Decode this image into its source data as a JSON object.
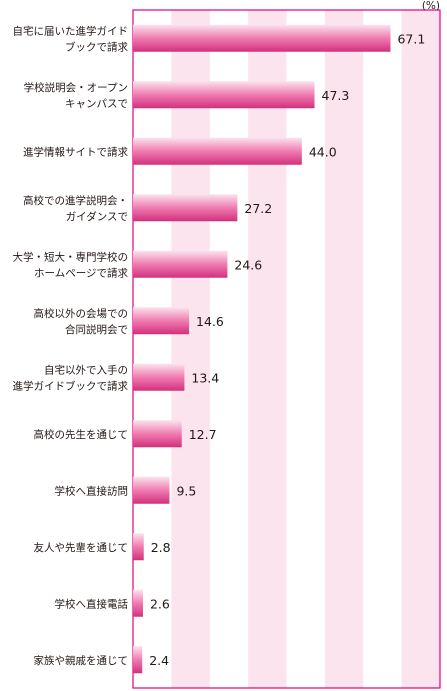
{
  "chart_data": {
    "type": "bar",
    "orientation": "horizontal",
    "unit": "(%)",
    "xlim": [
      0,
      80
    ],
    "grid": true,
    "categories": [
      [
        "自宅に届いた進学ガイド",
        "ブックで請求"
      ],
      [
        "学校説明会・オープン",
        "キャンパスで"
      ],
      [
        "進学情報サイトで請求"
      ],
      [
        "高校での進学説明会・",
        "ガイダンスで"
      ],
      [
        "大学・短大・専門学校の",
        "ホームページで請求"
      ],
      [
        "高校以外の会場での",
        "合同説明会で"
      ],
      [
        "自宅以外で入手の",
        "進学ガイドブックで請求"
      ],
      [
        "高校の先生を通じて"
      ],
      [
        "学校へ直接訪問"
      ],
      [
        "友人や先輩を通じて"
      ],
      [
        "学校へ直接電話"
      ],
      [
        "家族や親戚を通じて"
      ]
    ],
    "values": [
      67.1,
      47.3,
      44.0,
      27.2,
      24.6,
      14.6,
      13.4,
      12.7,
      9.5,
      2.8,
      2.6,
      2.4
    ],
    "value_labels": [
      "67.1",
      "47.3",
      "44.0",
      "27.2",
      "24.6",
      "14.6",
      "13.4",
      "12.7",
      "9.5",
      "2.8",
      "2.6",
      "2.4"
    ],
    "colors": {
      "bar_light": "#fbe3ee",
      "bar_mid": "#f07cb0",
      "bar_dark": "#d2307c",
      "band": "#fbe4ee",
      "frame": "#e3007f",
      "text": "#231815"
    }
  }
}
